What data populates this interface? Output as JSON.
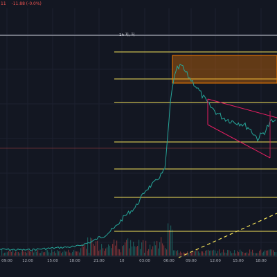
{
  "header": {
    "price_fragment": "11",
    "change": "-11.88 (-0.0",
    "change_suffix": "%)",
    "change_text": "-11.88 (-0.0%)"
  },
  "resistance_label": "1h 지, 저",
  "time_axis": {
    "ticks": [
      "09:00",
      "12:00",
      "15:00",
      "18:00",
      "21:00",
      "10",
      "03:00",
      "06:00",
      "09:00",
      "12:00",
      "15:00",
      "18:00"
    ]
  },
  "colors": {
    "background": "#131722",
    "level_line": "#f5e35a",
    "zone_fill": "#f57c00",
    "trendline": "#e91e63",
    "rising_dash": "#f5e35a",
    "price_line": "#26a69a",
    "header_text": "#ef5350"
  },
  "drawings": {
    "horizontal_levels_count": 8,
    "has_supply_zone": true,
    "has_triangle_pattern": true,
    "has_rising_dashed_trendline": true
  }
}
